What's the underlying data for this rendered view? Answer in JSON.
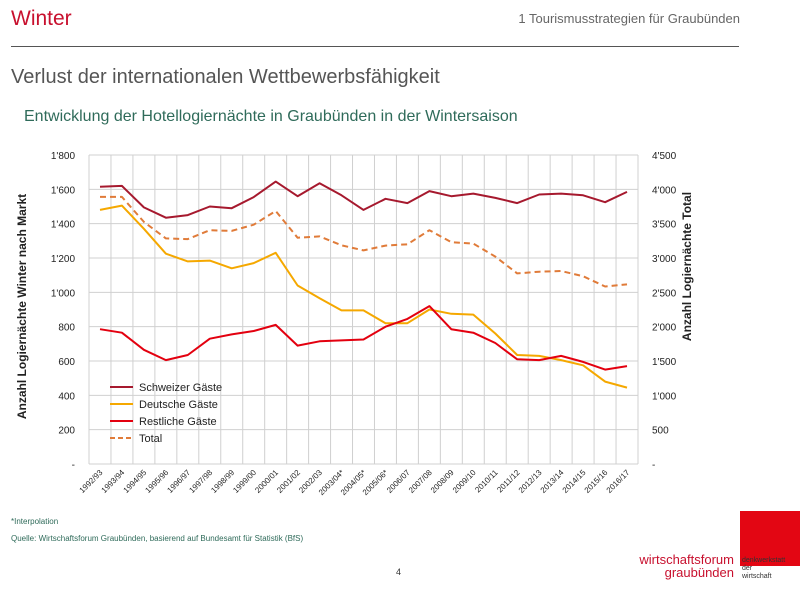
{
  "header": {
    "section": "Winter",
    "chapter": "1 Tourismusstrategien für Graubünden"
  },
  "headline": "Verlust der internationalen Wettbewerbsfähigkeit",
  "chart_data": {
    "type": "line",
    "title": "Entwicklung der Hotellogiernächte in Graubünden in der Wintersaison",
    "ylabel_left": "Anzahl Logiernächte Winter nach Markt",
    "ylabel_right": "Anzahl Logiernächte Total",
    "ylim_left": [
      0,
      1800
    ],
    "ylim_right": [
      0,
      4500
    ],
    "yticks_left": [
      "-",
      "200",
      "400",
      "600",
      "800",
      "1'000",
      "1'200",
      "1'400",
      "1'600",
      "1'800"
    ],
    "yticks_right": [
      "-",
      "500",
      "1'000",
      "1'500",
      "2'000",
      "2'500",
      "3'000",
      "3'500",
      "4'000",
      "4'500"
    ],
    "grid": true,
    "legend_position": "bottom-left",
    "categories": [
      "1992/93",
      "1993/94",
      "1994/95",
      "1995/96",
      "1996/97",
      "1997/98",
      "1998/99",
      "1999/00",
      "2000/01",
      "2001/02",
      "2002/03",
      "2003/04*",
      "2004/05*",
      "2005/06*",
      "2006/07",
      "2007/08",
      "2008/09",
      "2009/10",
      "2010/11",
      "2011/12",
      "2012/13",
      "2013/14",
      "2014/15",
      "2015/16",
      "2016/17"
    ],
    "series": [
      {
        "name": "Schweizer Gäste",
        "axis": "left",
        "color": "#a6192e",
        "dash": false,
        "values": [
          1615,
          1620,
          1495,
          1435,
          1450,
          1500,
          1490,
          1555,
          1645,
          1560,
          1635,
          1565,
          1480,
          1545,
          1520,
          1590,
          1560,
          1575,
          1550,
          1520,
          1570,
          1575,
          1565,
          1525,
          1585
        ]
      },
      {
        "name": "Deutsche Gäste",
        "axis": "left",
        "color": "#f5a800",
        "dash": false,
        "values": [
          1480,
          1505,
          1370,
          1225,
          1180,
          1185,
          1140,
          1170,
          1230,
          1040,
          965,
          895,
          895,
          820,
          820,
          900,
          875,
          870,
          760,
          635,
          630,
          605,
          575,
          480,
          445
        ]
      },
      {
        "name": "Restliche Gäste",
        "axis": "left",
        "color": "#e3000f",
        "dash": false,
        "values": [
          785,
          765,
          665,
          605,
          635,
          730,
          755,
          775,
          810,
          690,
          715,
          720,
          725,
          800,
          845,
          920,
          785,
          765,
          705,
          610,
          605,
          630,
          595,
          550,
          570
        ]
      },
      {
        "name": "Total",
        "axis": "right",
        "color": "#e07b39",
        "dash": true,
        "values": [
          3890,
          3890,
          3525,
          3285,
          3275,
          3405,
          3395,
          3485,
          3685,
          3295,
          3315,
          3185,
          3110,
          3180,
          3200,
          3405,
          3230,
          3210,
          3020,
          2775,
          2800,
          2810,
          2735,
          2585,
          2615
        ]
      }
    ]
  },
  "footer": {
    "footnote": "*Interpolation",
    "source": "Quelle: Wirtschaftsforum Graubünden, basierend auf Bundesamt für Statistik (BfS)",
    "page": "4",
    "logo_line1": "wirtschaftsforum",
    "logo_line2": "graubünden",
    "logo_side1": "denkwerkstatt",
    "logo_side2": "der",
    "logo_side3": "wirtschaft"
  }
}
